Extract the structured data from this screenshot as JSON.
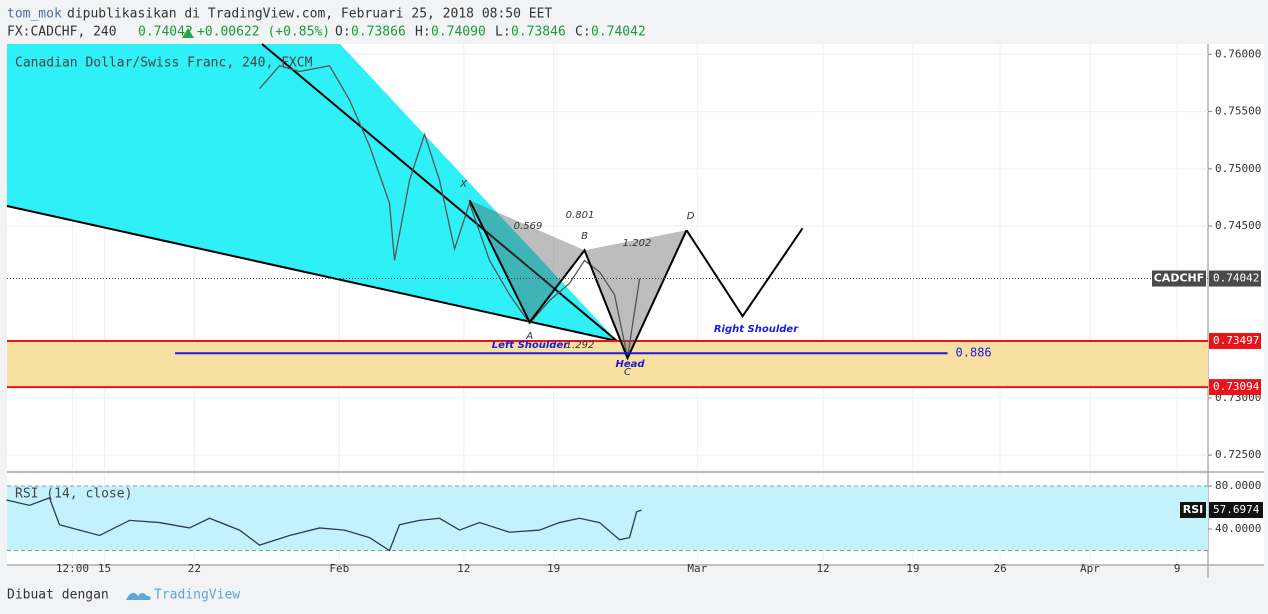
{
  "header": {
    "user": "tom_mok",
    "published": "dipublikasikan di TradingView.com, Februari 25, 2018 08:50 EET",
    "symbol": "FX:CADCHF, 240",
    "last": "0.74042",
    "change": "+0.00622 (+0.85%)",
    "ohlc": [
      {
        "label": "O:",
        "value": "0.73866"
      },
      {
        "label": "H:",
        "value": "0.74090"
      },
      {
        "label": "L:",
        "value": "0.73846"
      },
      {
        "label": "C:",
        "value": "0.74042"
      }
    ]
  },
  "chart_data": [
    {
      "type": "line",
      "title": "Canadian Dollar/Swiss Franc, 240, FXCM",
      "x": [
        27.08,
        28.64,
        30.2,
        32.54,
        34.1,
        35.65,
        37.21,
        37.6,
        38.77,
        39.94,
        41.11,
        42.28,
        43.45,
        45.01,
        46.57,
        48.13,
        49.68,
        51.24,
        52.41,
        53.58,
        54.75,
        55.76,
        56.7
      ],
      "series": [
        {
          "name": "CADCHF",
          "color": "#555555",
          "values": [
            0.757,
            0.759,
            0.7585,
            0.759,
            0.756,
            0.752,
            0.747,
            0.742,
            0.749,
            0.753,
            0.749,
            0.743,
            0.747,
            0.742,
            0.739,
            0.7365,
            0.7385,
            0.74,
            0.742,
            0.741,
            0.739,
            0.7335,
            0.74042
          ]
        }
      ],
      "xlim": [
        7.4,
        101
      ],
      "ylim": [
        0.7237,
        0.7609
      ],
      "yticks": [
        {
          "value": 0.76,
          "label": "0.76000"
        },
        {
          "value": 0.755,
          "label": "0.75500"
        },
        {
          "value": 0.75,
          "label": "0.75000"
        },
        {
          "value": 0.745,
          "label": "0.74500"
        },
        {
          "value": 0.73,
          "label": "0.73000"
        },
        {
          "value": 0.725,
          "label": "0.72500"
        }
      ],
      "last": 0.74042,
      "levels": [
        {
          "value": 0.73497,
          "color": "#e8141b"
        },
        {
          "value": 0.73094,
          "color": "#e8141b"
        }
      ],
      "zone_color": "#f8e0a2",
      "fib_line": {
        "label": "0.886",
        "value": 0.7339,
        "x": [
          20.5,
          80.7
        ],
        "color": "#1a1adb"
      },
      "pattern": {
        "labels": [
          "X",
          "A",
          "B",
          "C",
          "D"
        ],
        "x": [
          43.45,
          48.13,
          52.41,
          55.76,
          60.36
        ],
        "values": [
          0.74726,
          0.73661,
          0.74289,
          0.73347,
          0.74464
        ],
        "ratios": [
          "0.569",
          "0.801",
          "1.202",
          "1.292"
        ]
      },
      "projection": {
        "x": [
          60.36,
          64.73,
          69.4
        ],
        "values": [
          0.74464,
          0.73713,
          0.74481
        ]
      },
      "annotations": [
        "Left Shoulder",
        "Head",
        "Right Shoulder"
      ]
    },
    {
      "type": "line",
      "title": "RSI (14, close)",
      "x": [
        7.36,
        9.15,
        10.71,
        11.49,
        13.05,
        14.61,
        16.95,
        19.29,
        21.62,
        23.18,
        25.52,
        27.08,
        29.42,
        31.76,
        33.71,
        35.65,
        37.21,
        37.99,
        39.55,
        41.11,
        42.67,
        44.23,
        46.56,
        48.9,
        50.46,
        52.02,
        53.58,
        55.14,
        55.92,
        56.47,
        56.86
      ],
      "series": [
        {
          "name": "RSI",
          "color": "#2c3e50",
          "values": [
            67,
            62,
            69,
            44,
            39,
            34,
            48,
            46,
            41,
            50,
            39,
            25,
            34,
            41,
            39,
            32,
            20,
            44,
            48,
            50,
            39,
            46,
            37,
            39,
            46,
            50,
            46,
            30,
            32,
            56,
            57.6974
          ]
        }
      ],
      "last": 57.6974,
      "xlim": [
        7.4,
        101
      ],
      "ylim": [
        6.5,
        91.2
      ],
      "yticks": [
        {
          "value": 80,
          "label": "80.0000"
        },
        {
          "value": 40,
          "label": "40.0000"
        }
      ],
      "bands": [
        80,
        20
      ],
      "band_color": "#c3f1fc",
      "xticks": [
        {
          "value": 12.5,
          "label": "12:00"
        },
        {
          "value": 15,
          "label": "15"
        },
        {
          "value": 22,
          "label": "22"
        },
        {
          "value": 33.3,
          "label": "Feb"
        },
        {
          "value": 43,
          "label": "12"
        },
        {
          "value": 50,
          "label": "19"
        },
        {
          "value": 61.2,
          "label": "Mar"
        },
        {
          "value": 71,
          "label": "12"
        },
        {
          "value": 78,
          "label": "19"
        },
        {
          "value": 84.8,
          "label": "26"
        },
        {
          "value": 91.8,
          "label": "Apr"
        },
        {
          "value": 98.6,
          "label": "9"
        }
      ]
    }
  ],
  "footer": {
    "text": "Dibuat dengan",
    "brand": "TradingView"
  }
}
